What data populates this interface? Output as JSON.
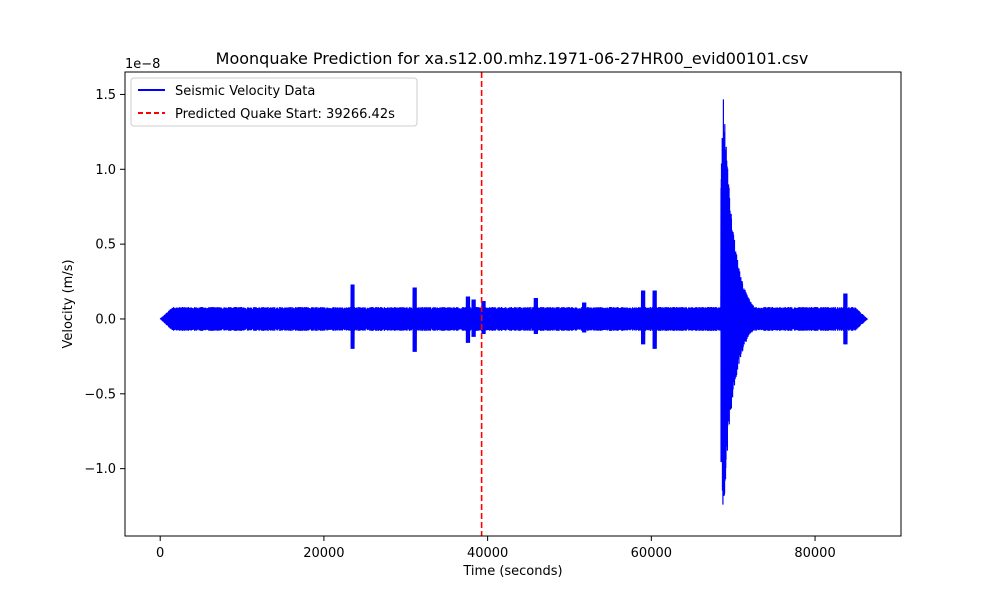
{
  "chart_data": {
    "type": "line",
    "title": "Moonquake Prediction for xa.s12.00.mhz.1971-06-27HR00_evid00101.csv",
    "xlabel": "Time (seconds)",
    "ylabel": "Velocity (m/s)",
    "y_offset_label": "1e−8",
    "xlim": [
      -4300,
      90500
    ],
    "ylim": [
      -1.45,
      1.65
    ],
    "x_ticks": [
      0,
      20000,
      40000,
      60000,
      80000
    ],
    "x_tick_labels": [
      "0",
      "20000",
      "40000",
      "60000",
      "80000"
    ],
    "y_ticks": [
      -1.0,
      -0.5,
      0.0,
      0.5,
      1.0,
      1.5
    ],
    "y_tick_labels": [
      "−1.0",
      "−0.5",
      "0.0",
      "0.5",
      "1.0",
      "1.5"
    ],
    "grid": false,
    "legend_position": "top-left",
    "series": [
      {
        "name": "Seismic Velocity Data",
        "color": "#0000ff",
        "style": "solid",
        "x_range": [
          0,
          86400
        ],
        "noise_amplitude": 0.08,
        "spikes": [
          {
            "x": 23500,
            "max": 0.23,
            "min": -0.2
          },
          {
            "x": 31100,
            "max": 0.21,
            "min": -0.22
          },
          {
            "x": 37600,
            "max": 0.15,
            "min": -0.16
          },
          {
            "x": 38300,
            "max": 0.13,
            "min": -0.12
          },
          {
            "x": 39500,
            "max": 0.12,
            "min": -0.1
          },
          {
            "x": 45900,
            "max": 0.14,
            "min": -0.1
          },
          {
            "x": 51800,
            "max": 0.11,
            "min": -0.09
          },
          {
            "x": 59000,
            "max": 0.19,
            "min": -0.17
          },
          {
            "x": 60400,
            "max": 0.19,
            "min": -0.2
          },
          {
            "x": 83700,
            "max": 0.17,
            "min": -0.17
          }
        ],
        "event": {
          "x_start": 68500,
          "peak": 1.51,
          "trough": -1.31,
          "peak_x": 68800,
          "decay_end": 73000
        }
      },
      {
        "name": "Predicted Quake Start: 39266.42s",
        "color": "#ff0000",
        "style": "dashed",
        "x": 39266.42
      }
    ]
  }
}
